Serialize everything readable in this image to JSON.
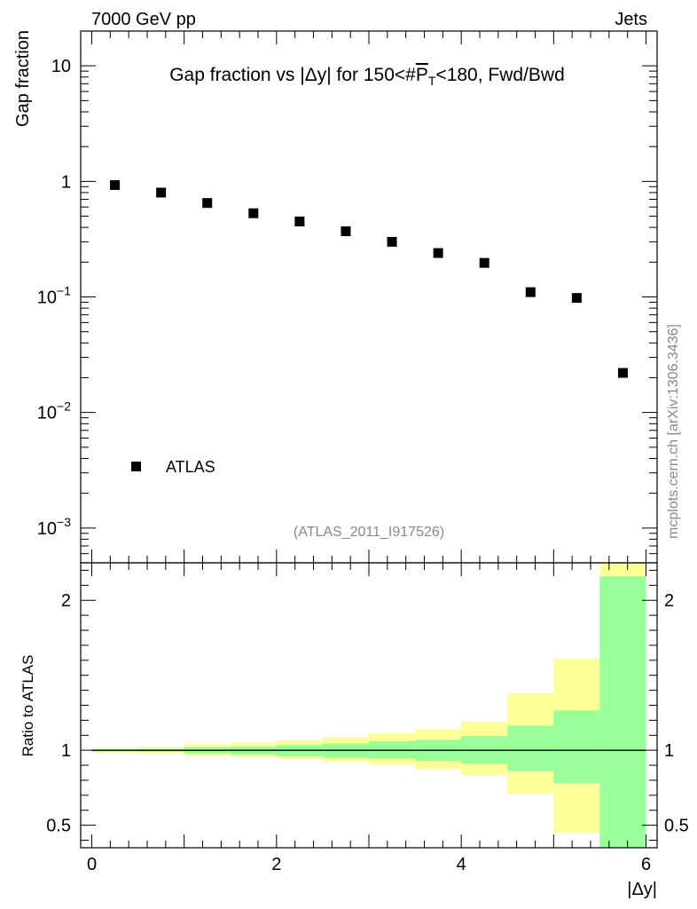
{
  "header": {
    "left": "7000 GeV pp",
    "right": "Jets"
  },
  "watermark": "mcplots.cern.ch [arXiv:1306.3436]",
  "analysis_id": "(ATLAS_2011_I917526)",
  "chart_data": [
    {
      "type": "scatter",
      "title": "Gap fraction vs |Δy| for 150<#P_T<180, Fwd/Bwd",
      "title_parts": {
        "pre": "Gap fraction vs |Δy| for 150<#",
        "p": "P",
        "sub": "T",
        "post": "<180, Fwd/Bwd"
      },
      "ylabel": "Gap fraction",
      "xlabel": "|Δy|",
      "yscale": "log",
      "ylim": [
        0.0005,
        20
      ],
      "xlim": [
        -0.12,
        6.12
      ],
      "y_ticks": [
        {
          "value": 10,
          "label": "10"
        },
        {
          "value": 1,
          "label": "1"
        },
        {
          "value": 0.1,
          "base": "10",
          "exp": "−1"
        },
        {
          "value": 0.01,
          "base": "10",
          "exp": "−2"
        },
        {
          "value": 0.001,
          "base": "10",
          "exp": "−3"
        }
      ],
      "legend": "ATLAS",
      "series": [
        {
          "name": "ATLAS",
          "marker": "square",
          "color": "#000000",
          "x": [
            0.25,
            0.75,
            1.25,
            1.75,
            2.25,
            2.75,
            3.25,
            3.75,
            4.25,
            4.75,
            5.25,
            5.75
          ],
          "y": [
            0.93,
            0.8,
            0.65,
            0.53,
            0.45,
            0.37,
            0.3,
            0.24,
            0.197,
            0.11,
            0.098,
            0.022
          ]
        }
      ]
    },
    {
      "type": "area",
      "ylabel": "Ratio to ATLAS",
      "xlabel": "|Δy|",
      "ylim": [
        0.35,
        2.25
      ],
      "xlim": [
        -0.12,
        6.12
      ],
      "x_ticks": [
        0,
        2,
        4,
        6
      ],
      "y_ticks": [
        0.5,
        1,
        2
      ],
      "reference_line": 1,
      "bin_edges": [
        0,
        0.5,
        1,
        1.5,
        2,
        2.5,
        3,
        3.5,
        4,
        4.5,
        5,
        5.5,
        6
      ],
      "bands": [
        {
          "name": "total uncertainty",
          "color": "#ffff99",
          "low": [
            0.985,
            0.98,
            0.965,
            0.955,
            0.94,
            0.925,
            0.905,
            0.875,
            0.835,
            0.71,
            0.45,
            0.35
          ],
          "high": [
            1.012,
            1.02,
            1.04,
            1.05,
            1.065,
            1.085,
            1.115,
            1.14,
            1.19,
            1.38,
            1.61,
            2.25
          ]
        },
        {
          "name": "statistical uncertainty",
          "color": "#99ff99",
          "low": [
            0.992,
            0.99,
            0.98,
            0.97,
            0.96,
            0.95,
            0.945,
            0.93,
            0.91,
            0.86,
            0.78,
            0.35
          ],
          "high": [
            1.007,
            1.01,
            1.02,
            1.025,
            1.035,
            1.045,
            1.06,
            1.07,
            1.095,
            1.165,
            1.265,
            2.16
          ]
        }
      ]
    }
  ]
}
